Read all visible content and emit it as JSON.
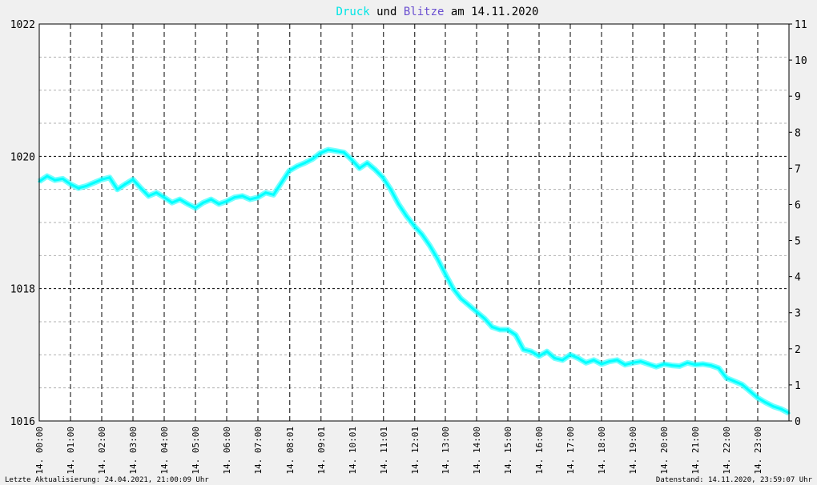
{
  "title": {
    "part1": "Druck",
    "part2": " und ",
    "part3": "Blitze",
    "part4": " am 14.11.2020",
    "color1": "#00e5e5",
    "color3": "#6a4fd0",
    "color_rest": "#000000"
  },
  "footer": {
    "left": "Letzte Aktualisierung: 24.04.2021, 21:00:09 Uhr",
    "right": "Datenstand: 14.11.2020, 23:59:07 Uhr"
  },
  "colors": {
    "background": "#f0f0f0",
    "plot_background": "#ffffff",
    "series": "#00ffff",
    "grid_major": "#000000",
    "grid_minor": "#b0b0b0"
  },
  "chart_data": {
    "type": "line",
    "x_unit": "hours",
    "xlim": [
      0,
      24
    ],
    "ylim": [
      1016,
      1022
    ],
    "y2lim": [
      0,
      11
    ],
    "y_ticks": [
      {
        "v": 1016,
        "label": "1016"
      },
      {
        "v": 1018,
        "label": "1018"
      },
      {
        "v": 1020,
        "label": "1020"
      },
      {
        "v": 1022,
        "label": "1022"
      }
    ],
    "y_minor_ticks": [
      1016.5,
      1017,
      1017.5,
      1018.5,
      1019,
      1019.5,
      1020.5,
      1021,
      1021.5
    ],
    "y2_ticks": [
      "0",
      "1",
      "2",
      "3",
      "4",
      "5",
      "6",
      "7",
      "8",
      "9",
      "10",
      "11"
    ],
    "x_ticks": [
      {
        "h": 0.0,
        "label": "14. 00:00"
      },
      {
        "h": 1.0,
        "label": "14. 01:00"
      },
      {
        "h": 2.0,
        "label": "14. 02:00"
      },
      {
        "h": 3.0,
        "label": "14. 03:00"
      },
      {
        "h": 4.0,
        "label": "14. 04:00"
      },
      {
        "h": 5.0,
        "label": "14. 05:00"
      },
      {
        "h": 6.0,
        "label": "14. 06:00"
      },
      {
        "h": 7.0,
        "label": "14. 07:00"
      },
      {
        "h": 8.02,
        "label": "14. 08:01"
      },
      {
        "h": 9.02,
        "label": "14. 09:01"
      },
      {
        "h": 10.02,
        "label": "14. 10:01"
      },
      {
        "h": 11.02,
        "label": "14. 11:01"
      },
      {
        "h": 12.02,
        "label": "14. 12:01"
      },
      {
        "h": 13.0,
        "label": "14. 13:00"
      },
      {
        "h": 14.0,
        "label": "14. 14:00"
      },
      {
        "h": 15.0,
        "label": "14. 15:00"
      },
      {
        "h": 16.0,
        "label": "14. 16:00"
      },
      {
        "h": 17.0,
        "label": "14. 17:00"
      },
      {
        "h": 18.0,
        "label": "14. 18:00"
      },
      {
        "h": 19.0,
        "label": "14. 19:00"
      },
      {
        "h": 20.0,
        "label": "14. 20:00"
      },
      {
        "h": 21.0,
        "label": "14. 21:00"
      },
      {
        "h": 22.0,
        "label": "14. 22:00"
      },
      {
        "h": 23.0,
        "label": "14. 23:00"
      }
    ],
    "series": [
      {
        "name": "Druck",
        "color": "#00ffff",
        "x": [
          0.0,
          0.25,
          0.5,
          0.75,
          1.0,
          1.25,
          1.5,
          1.75,
          2.0,
          2.25,
          2.5,
          2.75,
          3.0,
          3.25,
          3.5,
          3.75,
          4.0,
          4.25,
          4.5,
          4.75,
          5.0,
          5.25,
          5.5,
          5.75,
          6.0,
          6.25,
          6.5,
          6.75,
          7.0,
          7.25,
          7.5,
          7.75,
          8.0,
          8.25,
          8.5,
          8.75,
          9.0,
          9.25,
          9.5,
          9.75,
          10.0,
          10.25,
          10.5,
          10.75,
          11.0,
          11.25,
          11.5,
          11.75,
          12.0,
          12.25,
          12.5,
          12.75,
          13.0,
          13.25,
          13.5,
          13.75,
          14.0,
          14.25,
          14.5,
          14.75,
          15.0,
          15.25,
          15.5,
          15.75,
          16.0,
          16.25,
          16.5,
          16.75,
          17.0,
          17.25,
          17.5,
          17.75,
          18.0,
          18.25,
          18.5,
          18.75,
          19.0,
          19.25,
          19.5,
          19.75,
          20.0,
          20.25,
          20.5,
          20.75,
          21.0,
          21.25,
          21.5,
          21.75,
          22.0,
          22.25,
          22.5,
          22.75,
          23.0,
          23.25,
          23.5,
          23.75,
          24.0
        ],
        "values": [
          1019.62,
          1019.7,
          1019.64,
          1019.66,
          1019.58,
          1019.52,
          1019.55,
          1019.6,
          1019.65,
          1019.68,
          1019.5,
          1019.58,
          1019.65,
          1019.52,
          1019.4,
          1019.45,
          1019.38,
          1019.3,
          1019.35,
          1019.28,
          1019.22,
          1019.3,
          1019.35,
          1019.28,
          1019.32,
          1019.38,
          1019.4,
          1019.35,
          1019.38,
          1019.45,
          1019.42,
          1019.6,
          1019.78,
          1019.85,
          1019.9,
          1019.96,
          1020.05,
          1020.1,
          1020.08,
          1020.06,
          1019.95,
          1019.82,
          1019.9,
          1019.8,
          1019.68,
          1019.5,
          1019.28,
          1019.1,
          1018.95,
          1018.82,
          1018.65,
          1018.45,
          1018.22,
          1018.0,
          1017.85,
          1017.75,
          1017.65,
          1017.55,
          1017.42,
          1017.38,
          1017.38,
          1017.3,
          1017.08,
          1017.05,
          1016.98,
          1017.05,
          1016.95,
          1016.92,
          1017.0,
          1016.95,
          1016.88,
          1016.92,
          1016.86,
          1016.9,
          1016.92,
          1016.85,
          1016.88,
          1016.9,
          1016.86,
          1016.82,
          1016.86,
          1016.84,
          1016.83,
          1016.88,
          1016.85,
          1016.86,
          1016.84,
          1016.8,
          1016.65,
          1016.6,
          1016.55,
          1016.45,
          1016.35,
          1016.28,
          1016.22,
          1016.18,
          1016.12
        ]
      }
    ]
  }
}
